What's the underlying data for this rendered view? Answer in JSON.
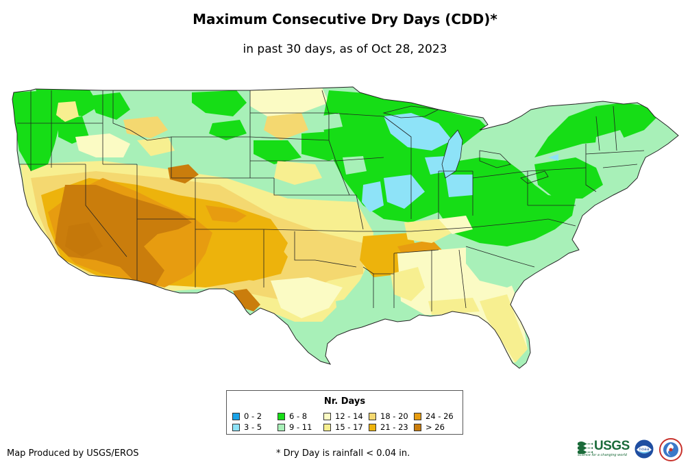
{
  "header": {
    "title": "Maximum Consecutive Dry Days (CDD)*",
    "subtitle": "in past 30 days, as of Oct 28, 2023"
  },
  "legend": {
    "title": "Nr. Days",
    "items": [
      {
        "label": "0 - 2",
        "color": "#1aa3e8"
      },
      {
        "label": "3 - 5",
        "color": "#8ee3f8"
      },
      {
        "label": "6 - 8",
        "color": "#16dd16"
      },
      {
        "label": "9 - 11",
        "color": "#a8f0b8"
      },
      {
        "label": "12 - 14",
        "color": "#fbfbc4"
      },
      {
        "label": "15 - 17",
        "color": "#f7ef90"
      },
      {
        "label": "18 - 20",
        "color": "#f4d870"
      },
      {
        "label": "21 - 23",
        "color": "#edb30c"
      },
      {
        "label": "24 - 26",
        "color": "#e79c10"
      },
      {
        "label": "> 26",
        "color": "#ca7d0c"
      }
    ]
  },
  "footer": {
    "credit": "Map Produced by USGS/EROS",
    "footnote": "* Dry Day is rainfall < 0.04 in."
  },
  "logos": {
    "usgs": "USGS",
    "usgs_tagline": "science for a changing world",
    "noaa": "noaa"
  }
}
